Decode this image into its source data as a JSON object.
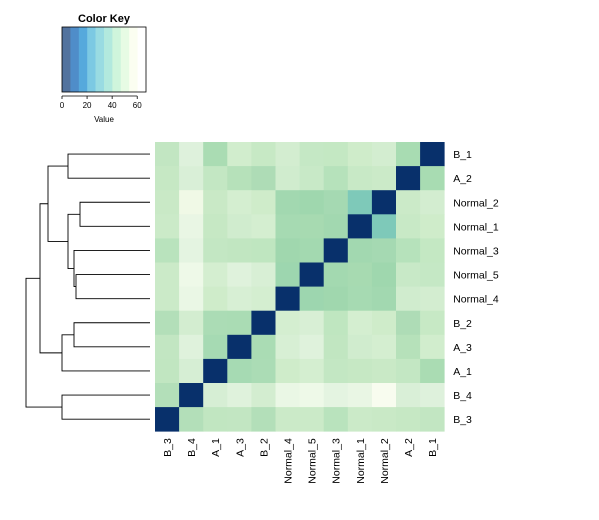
{
  "chart_data": {
    "type": "heatmap",
    "title": "",
    "xlabel": "",
    "ylabel": "",
    "color_key": {
      "title": "Color Key",
      "xlabel": "Value",
      "ticks": [
        "0",
        "20",
        "40",
        "60"
      ],
      "tick_values": [
        0,
        20,
        40,
        60
      ],
      "range": [
        0,
        67
      ],
      "bands": [
        {
          "from": 0,
          "to": 6.7,
          "color": "#53739e"
        },
        {
          "from": 6.7,
          "to": 13.4,
          "color": "#4f8dc9"
        },
        {
          "from": 13.4,
          "to": 20.1,
          "color": "#56a9dc"
        },
        {
          "from": 20.1,
          "to": 26.8,
          "color": "#7cc9e3"
        },
        {
          "from": 26.8,
          "to": 33.5,
          "color": "#99dbe2"
        },
        {
          "from": 33.5,
          "to": 40.2,
          "color": "#b2e9de"
        },
        {
          "from": 40.2,
          "to": 46.9,
          "color": "#cff5dc"
        },
        {
          "from": 46.9,
          "to": 53.6,
          "color": "#e7fbe4"
        },
        {
          "from": 53.6,
          "to": 60.3,
          "color": "#fbfef1"
        },
        {
          "from": 60.3,
          "to": 67,
          "color": "#ffffff"
        }
      ]
    },
    "rows": [
      "B_1",
      "A_2",
      "Normal_2",
      "Normal_1",
      "Normal_3",
      "Normal_5",
      "Normal_4",
      "B_2",
      "A_3",
      "A_1",
      "B_4",
      "B_3"
    ],
    "columns": [
      "B_3",
      "B_4",
      "A_1",
      "A_3",
      "B_2",
      "Normal_4",
      "Normal_5",
      "Normal_3",
      "Normal_1",
      "Normal_2",
      "A_2",
      "B_1"
    ],
    "color_levels": [
      [
        "#c2e6c2",
        "#def1dc",
        "#aadcb3",
        "#d1edcd",
        "#c7e9c5",
        "#d3edd0",
        "#c5e8c5",
        "#c4e8c3",
        "#cfecca",
        "#d3edd0",
        "#a8dcb2",
        "#08306b"
      ],
      [
        "#c6e8c4",
        "#d9efd7",
        "#c3e7c3",
        "#b6e1ba",
        "#aedcb6",
        "#d0ecce",
        "#c8e9c7",
        "#b6e2bb",
        "#c8e9c6",
        "#cbeac8",
        "#08306b",
        "#a8dcb2"
      ],
      [
        "#c9e9c6",
        "#f0f9e6",
        "#c9e9c6",
        "#d4eed0",
        "#cfecca",
        "#a2d8b0",
        "#9fd7ae",
        "#a5d9b2",
        "#7ec9b9",
        "#08306b",
        "#cbeac8",
        "#d3edd0"
      ],
      [
        "#cbeac8",
        "#e9f6e4",
        "#c6e8c4",
        "#d0ecce",
        "#d4eed0",
        "#a6dab2",
        "#a7dab1",
        "#a2d8b0",
        "#08306b",
        "#7ec9b9",
        "#c8e9c6",
        "#cfecca"
      ],
      [
        "#b9e3bd",
        "#e4f4e1",
        "#c3e7c3",
        "#c1e6c1",
        "#bfe6c0",
        "#a0d7ae",
        "#a3d9b0",
        "#08306b",
        "#a2d8b0",
        "#a5d9b2",
        "#b6e2bb",
        "#c4e8c3"
      ],
      [
        "#cbeac8",
        "#eef9e8",
        "#d4eed0",
        "#dff2dc",
        "#d8efd5",
        "#9dd6af",
        "#08306b",
        "#a3d9b0",
        "#a7dab1",
        "#9fd7ae",
        "#c8e9c7",
        "#c5e8c5"
      ],
      [
        "#cbeac8",
        "#eaf7e5",
        "#cfecca",
        "#d7efd4",
        "#d4eed0",
        "#08306b",
        "#9dd6af",
        "#a0d7ae",
        "#a6dab2",
        "#a2d8b0",
        "#d0ecce",
        "#d3edd0"
      ],
      [
        "#b3dfb9",
        "#d3edd0",
        "#abdcb5",
        "#aadcb4",
        "#08306b",
        "#d4eed0",
        "#d8efd5",
        "#bfe6c0",
        "#d4eed0",
        "#cfecca",
        "#aedcb6",
        "#c7e9c5"
      ],
      [
        "#c2e6c2",
        "#dff2dc",
        "#a6dab3",
        "#08306b",
        "#aadcb4",
        "#d7efd4",
        "#dff2dc",
        "#c1e6c1",
        "#d0ecce",
        "#d4eed0",
        "#b6e1ba",
        "#d1edcd"
      ],
      [
        "#c1e6c1",
        "#d6eed4",
        "#08306b",
        "#a6dab3",
        "#abdcb5",
        "#cfecca",
        "#d4eed0",
        "#c3e7c3",
        "#c6e8c4",
        "#c9e9c6",
        "#c3e7c3",
        "#aadcb3"
      ],
      [
        "#b3dfb9",
        "#08306b",
        "#d6eed4",
        "#dff2dc",
        "#d3edd0",
        "#eaf7e5",
        "#eef9e8",
        "#e4f4e1",
        "#e9f6e4",
        "#f8fcef",
        "#d9efd7",
        "#def1dc"
      ],
      [
        "#08306b",
        "#b3dfb9",
        "#c1e6c1",
        "#c2e6c2",
        "#b3dfb9",
        "#cbeac8",
        "#cbeac8",
        "#b9e3bd",
        "#cbeac8",
        "#c9e9c6",
        "#c6e8c4",
        "#c2e6c2"
      ]
    ],
    "row_dendrogram": {
      "merges": [
        [
          "Normal_2",
          "Normal_1"
        ],
        [
          "Normal_5",
          "Normal_4"
        ],
        [
          "Normal_3",
          "Normal_5+Normal_4"
        ],
        [
          "Normal_2+Normal_1",
          "Normal_3+Normal_5+Normal_4"
        ],
        [
          "B_2",
          "A_3"
        ],
        [
          "B_2+A_3",
          "A_1"
        ],
        [
          "B_1",
          "A_2"
        ],
        [
          "B_1+A_2",
          "Normal"
        ],
        [
          "B_4",
          "B_3"
        ],
        [
          "B_1+A_2+Normal",
          "B_2+A_3+A_1"
        ],
        [
          "upper",
          "B_4+B_3"
        ]
      ]
    }
  }
}
